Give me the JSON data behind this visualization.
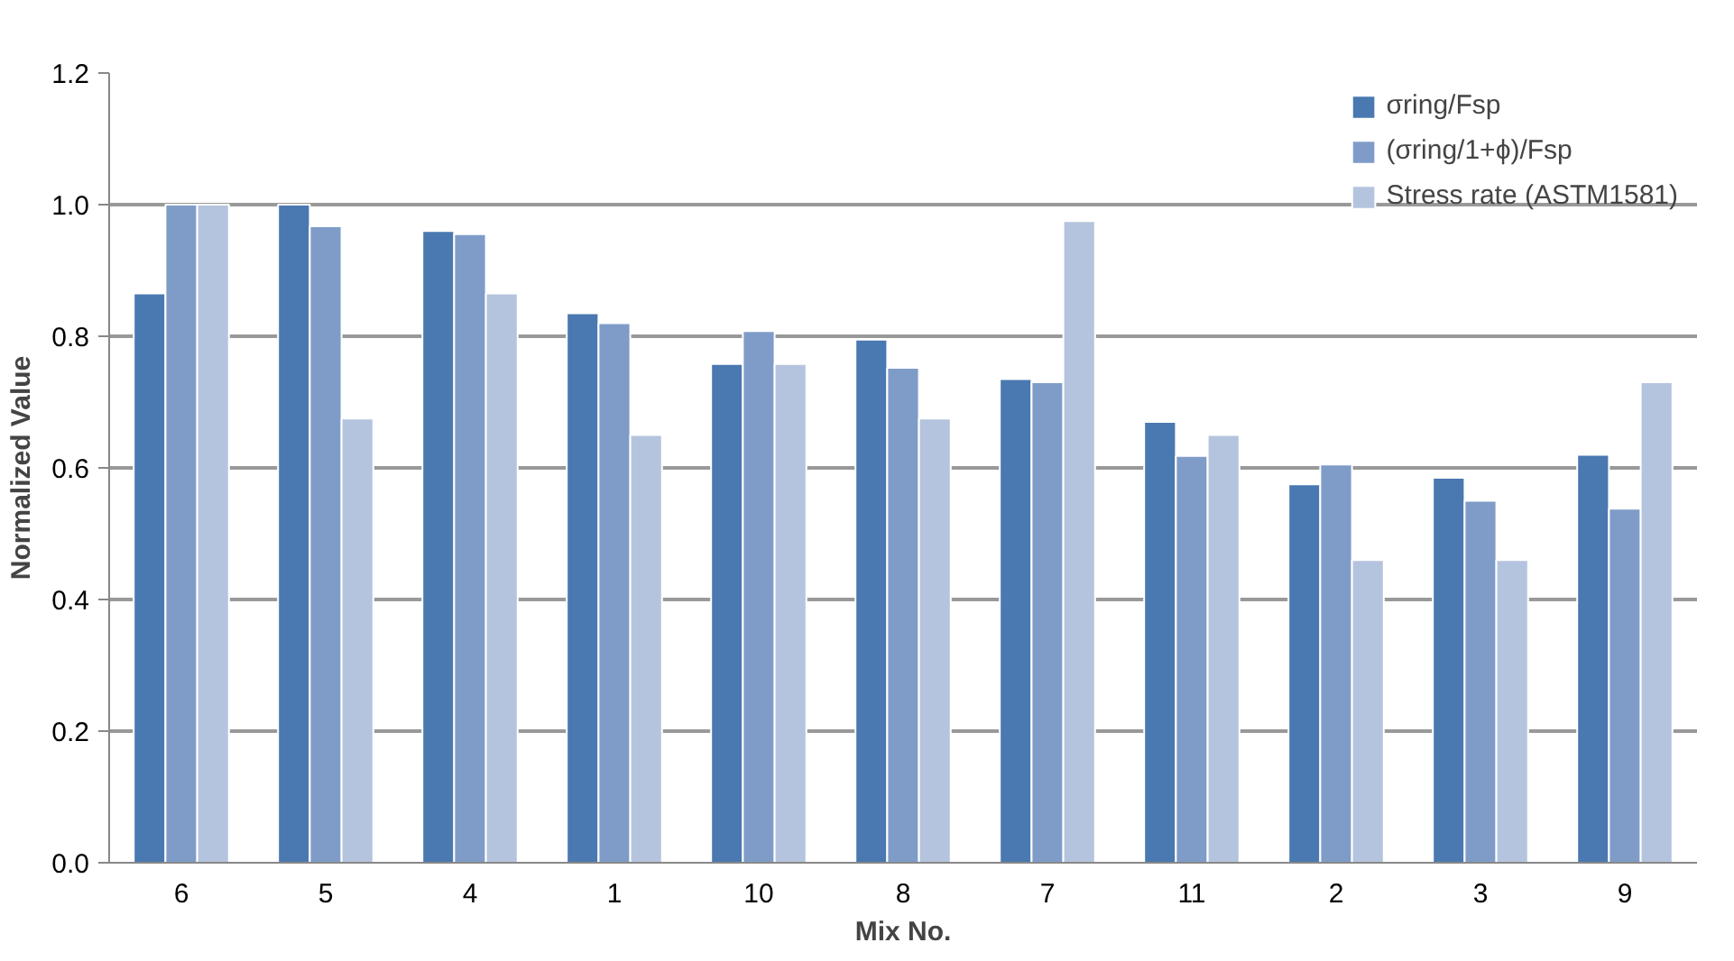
{
  "chart_data": {
    "type": "bar",
    "xlabel": "Mix No.",
    "ylabel": "Normalized Value",
    "categories": [
      "6",
      "5",
      "4",
      "1",
      "10",
      "8",
      "7",
      "11",
      "2",
      "3",
      "9"
    ],
    "series": [
      {
        "name": "σring/Fsp",
        "color": "#4a78b0",
        "values": [
          0.865,
          1.0,
          0.96,
          0.835,
          0.758,
          0.795,
          0.735,
          0.67,
          0.575,
          0.585,
          0.62
        ]
      },
      {
        "name": "(σring/1+ϕ)/Fsp",
        "color": "#7f9cc8",
        "values": [
          1.0,
          0.967,
          0.955,
          0.82,
          0.808,
          0.752,
          0.73,
          0.618,
          0.605,
          0.55,
          0.538
        ]
      },
      {
        "name": "Stress rate (ASTM1581)",
        "color": "#b5c4de",
        "values": [
          1.0,
          0.675,
          0.865,
          0.65,
          0.758,
          0.675,
          0.975,
          0.65,
          0.46,
          0.46,
          0.73
        ]
      }
    ],
    "ylim": [
      0,
      1.2
    ],
    "yticks": [
      {
        "value": 0,
        "label": "0.0"
      },
      {
        "value": 0.2,
        "label": "0.2"
      },
      {
        "value": 0.4,
        "label": "0.4"
      },
      {
        "value": 0.6,
        "label": "0.6"
      },
      {
        "value": 0.8,
        "label": "0.8"
      },
      {
        "value": 1.0,
        "label": "1.0"
      },
      {
        "value": 1.2,
        "label": "1.2"
      }
    ],
    "grid": "y",
    "legend": "top right"
  }
}
